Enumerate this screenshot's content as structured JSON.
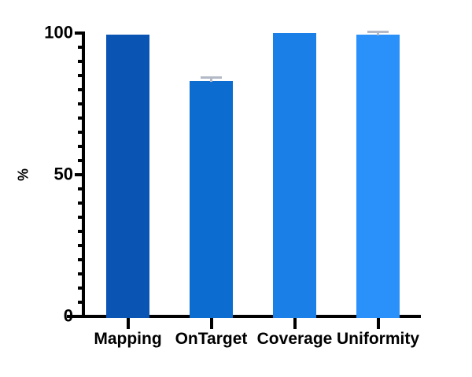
{
  "chart_data": {
    "type": "bar",
    "title": "",
    "xlabel": "",
    "ylabel": "%",
    "categories": [
      "Mapping",
      "OnTarget",
      "Coverage",
      "Uniformity"
    ],
    "values": [
      99.4,
      83,
      100,
      99.5
    ],
    "errors": [
      0,
      1.2,
      0,
      0.8
    ],
    "bar_colors": [
      "#0a55b4",
      "#0d6cd0",
      "#1a80e8",
      "#2a91fa"
    ],
    "error_bar_color": "#b3b9c6",
    "axis_color": "#000000",
    "ylim": [
      0,
      100
    ],
    "ytick_major": [
      0,
      50,
      100
    ],
    "ytick_minor_step": 5,
    "grid": "off",
    "legend": "none"
  }
}
